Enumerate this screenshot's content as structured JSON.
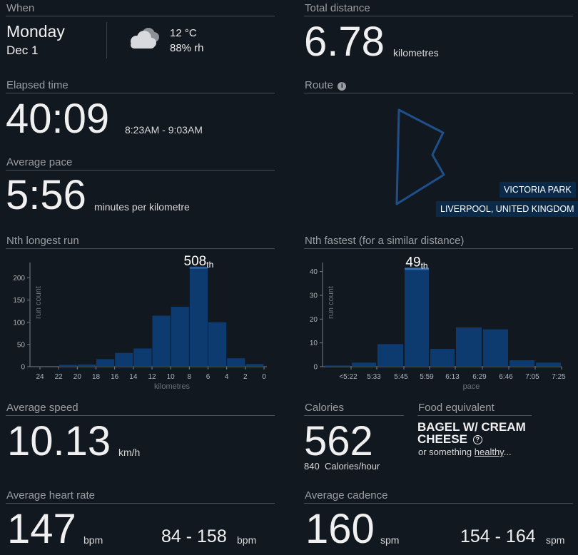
{
  "when": {
    "header": "When",
    "day": "Monday",
    "date": "Dec 1",
    "temperature": "12 °C",
    "humidity": "88% rh",
    "weather_icon": "cloudy-icon"
  },
  "distance": {
    "header": "Total distance",
    "value": "6.78",
    "unit": "kilometres"
  },
  "elapsed": {
    "header": "Elapsed time",
    "value": "40:09",
    "range": "8:23AM - 9:03AM"
  },
  "route": {
    "header": "Route",
    "info_icon": "info-icon",
    "location_line1": "VICTORIA PARK",
    "location_line2": "LIVERPOOL, UNITED KINGDOM",
    "route_color": "#1f4f8a"
  },
  "pace": {
    "header": "Average pace",
    "value": "5:56",
    "unit": "minutes per kilometre"
  },
  "nth_longest": {
    "header": "Nth longest run",
    "rank": "508",
    "suffix": "th"
  },
  "nth_fastest": {
    "header": "Nth fastest (for a similar distance)",
    "rank": "49",
    "suffix": "th"
  },
  "speed": {
    "header": "Average speed",
    "value": "10.13",
    "unit": "km/h"
  },
  "calories": {
    "header": "Calories",
    "value": "562",
    "rate": "840",
    "rate_unit": "Calories/hour"
  },
  "food": {
    "header": "Food equivalent",
    "name_line1": "BAGEL W/ CREAM",
    "name_line2": "CHEESE",
    "help_icon": "help-circle-icon",
    "note_prefix": "or something ",
    "note_link": "healthy",
    "note_suffix": "..."
  },
  "heart": {
    "header": "Average heart rate",
    "value": "147",
    "unit": "bpm",
    "range": "84 - 158",
    "range_unit": "bpm"
  },
  "cadence": {
    "header": "Average cadence",
    "value": "160",
    "unit": "spm",
    "range": "154 - 164",
    "range_unit": "spm"
  },
  "chart_data": [
    {
      "type": "bar",
      "ylabel": "run count",
      "xlabel": "kilometres",
      "x_ticks": [
        "24",
        "22",
        "20",
        "18",
        "16",
        "14",
        "12",
        "10",
        "8",
        "6",
        "4",
        "2",
        "0"
      ],
      "y_ticks": [
        "0",
        "50",
        "100",
        "150",
        "200"
      ],
      "ylim": [
        0,
        225
      ],
      "bins": [
        [
          23,
          22
        ],
        [
          22,
          20
        ],
        [
          20,
          18
        ],
        [
          18,
          16
        ],
        [
          16,
          14
        ],
        [
          14,
          12
        ],
        [
          12,
          10
        ],
        [
          10,
          8
        ],
        [
          8,
          6
        ],
        [
          6,
          4
        ],
        [
          4,
          2
        ],
        [
          2,
          0
        ]
      ],
      "values": [
        0,
        4,
        5,
        17,
        31,
        41,
        115,
        135,
        222,
        100,
        19,
        6
      ],
      "highlight_index": 8,
      "bar_color": "#0d3b70",
      "highlight_color": "#0d3b70"
    },
    {
      "type": "bar",
      "ylabel": "run count",
      "xlabel": "pace",
      "x_ticks": [
        "<5:22",
        "5:33",
        "5:45",
        "5:59",
        "6:13",
        "6:29",
        "6:46",
        "7:05",
        "7:25"
      ],
      "y_ticks": [
        "0",
        "10",
        "20",
        "30",
        "40"
      ],
      "ylim": [
        0,
        42
      ],
      "values": [
        0.5,
        1.7,
        9.5,
        41,
        7.5,
        16.5,
        15.7,
        2.7,
        1.7
      ],
      "highlight_index": 3,
      "bar_color": "#0d3b70",
      "highlight_color": "#0d3b70"
    }
  ]
}
